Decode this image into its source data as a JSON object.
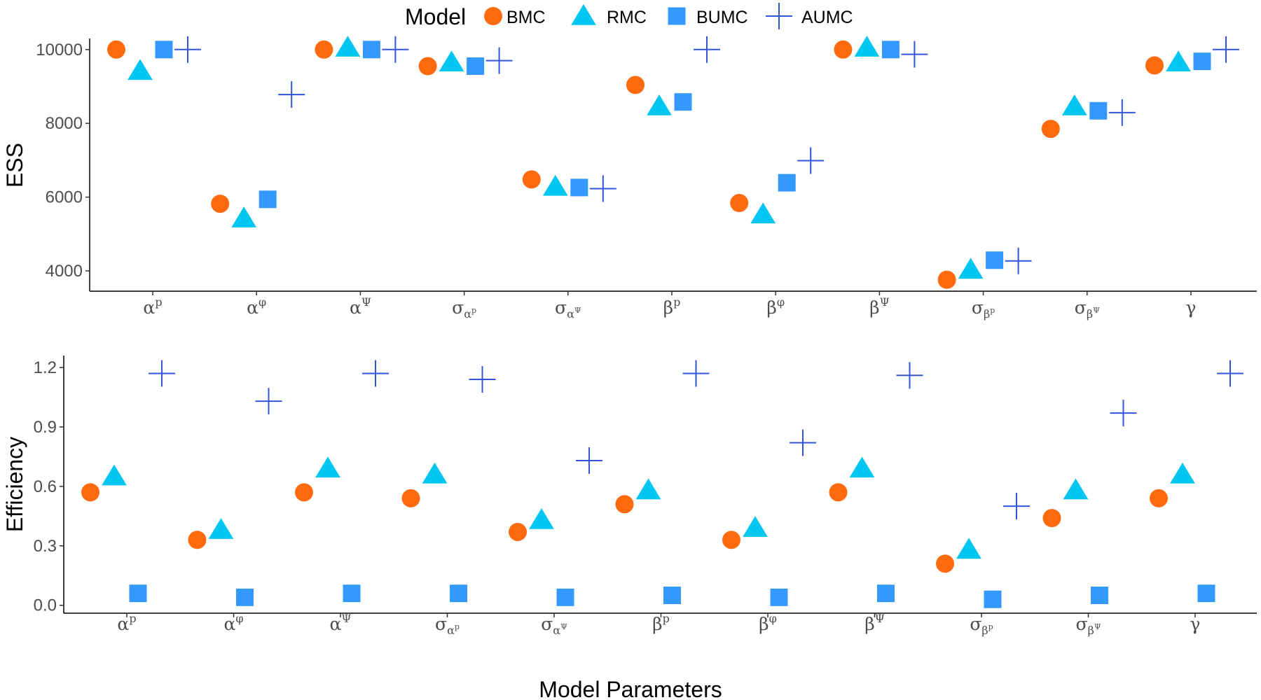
{
  "legend": {
    "title": "Model",
    "items": [
      {
        "name": "BMC",
        "shape": "circle",
        "color": "#FF6A0F"
      },
      {
        "name": "RMC",
        "shape": "triangle",
        "color": "#00C6F2"
      },
      {
        "name": "BUMC",
        "shape": "square",
        "color": "#3399FF"
      },
      {
        "name": "AUMC",
        "shape": "plus",
        "color": "#3355DD"
      }
    ]
  },
  "xlabel": "Model Parameters",
  "chart_data": [
    {
      "type": "scatter",
      "title": "",
      "ylabel": "ESS",
      "ylim": [
        3450,
        10300
      ],
      "yticks": [
        4000,
        6000,
        8000,
        10000
      ],
      "ytick_labels": [
        "4000",
        "6000",
        "8000",
        "10000"
      ],
      "grid": false,
      "categories": [
        {
          "base": "α",
          "sup": "p",
          "sub": "",
          "subsup": ""
        },
        {
          "base": "α",
          "sup": "φ",
          "sub": "",
          "subsup": ""
        },
        {
          "base": "α",
          "sup": "Ψ",
          "sub": "",
          "subsup": ""
        },
        {
          "base": "σ",
          "sup": "",
          "sub": "α",
          "subsup": "p"
        },
        {
          "base": "σ",
          "sup": "",
          "sub": "α",
          "subsup": "Ψ"
        },
        {
          "base": "β",
          "sup": "p",
          "sub": "",
          "subsup": ""
        },
        {
          "base": "β",
          "sup": "φ",
          "sub": "",
          "subsup": ""
        },
        {
          "base": "β",
          "sup": "Ψ",
          "sub": "",
          "subsup": ""
        },
        {
          "base": "σ",
          "sup": "",
          "sub": "β",
          "subsup": "p"
        },
        {
          "base": "σ",
          "sup": "",
          "sub": "β",
          "subsup": "Ψ"
        },
        {
          "base": "γ",
          "sup": "",
          "sub": "",
          "subsup": ""
        }
      ],
      "series": [
        {
          "name": "BMC",
          "values": [
            10000,
            5820,
            10000,
            9550,
            6480,
            9040,
            5840,
            10000,
            3760,
            7850,
            9570
          ]
        },
        {
          "name": "RMC",
          "values": [
            9420,
            5420,
            10050,
            9650,
            6280,
            8460,
            5530,
            10050,
            4030,
            8460,
            9650
          ]
        },
        {
          "name": "BUMC",
          "values": [
            10000,
            5940,
            10000,
            9550,
            6260,
            8580,
            6390,
            10000,
            4290,
            8340,
            9680
          ]
        },
        {
          "name": "AUMC",
          "values": [
            10000,
            8780,
            10000,
            9700,
            6230,
            10000,
            6990,
            9870,
            4270,
            8290,
            10000
          ]
        }
      ]
    },
    {
      "type": "scatter",
      "title": "",
      "ylabel": "Efficiency",
      "ylim": [
        -0.04,
        1.26
      ],
      "yticks": [
        0.0,
        0.3,
        0.6,
        0.9,
        1.2
      ],
      "ytick_labels": [
        "0.0",
        "0.3",
        "0.6",
        "0.9",
        "1.2"
      ],
      "grid": false,
      "categories": [
        {
          "base": "α",
          "sup": "p",
          "sub": "",
          "subsup": ""
        },
        {
          "base": "α",
          "sup": "φ",
          "sub": "",
          "subsup": ""
        },
        {
          "base": "α",
          "sup": "Ψ",
          "sub": "",
          "subsup": ""
        },
        {
          "base": "σ",
          "sup": "",
          "sub": "α",
          "subsup": "p"
        },
        {
          "base": "σ",
          "sup": "",
          "sub": "α",
          "subsup": "Ψ"
        },
        {
          "base": "β",
          "sup": "p",
          "sub": "",
          "subsup": ""
        },
        {
          "base": "β",
          "sup": "φ",
          "sub": "",
          "subsup": ""
        },
        {
          "base": "β",
          "sup": "Ψ",
          "sub": "",
          "subsup": ""
        },
        {
          "base": "σ",
          "sup": "",
          "sub": "β",
          "subsup": "p"
        },
        {
          "base": "σ",
          "sup": "",
          "sub": "β",
          "subsup": "Ψ"
        },
        {
          "base": "γ",
          "sup": "",
          "sub": "",
          "subsup": ""
        }
      ],
      "series": [
        {
          "name": "BMC",
          "values": [
            0.57,
            0.33,
            0.57,
            0.54,
            0.37,
            0.51,
            0.33,
            0.57,
            0.21,
            0.44,
            0.54
          ]
        },
        {
          "name": "RMC",
          "values": [
            0.65,
            0.38,
            0.69,
            0.66,
            0.43,
            0.58,
            0.39,
            0.69,
            0.28,
            0.58,
            0.66
          ]
        },
        {
          "name": "BUMC",
          "values": [
            0.06,
            0.04,
            0.06,
            0.06,
            0.04,
            0.05,
            0.04,
            0.06,
            0.03,
            0.05,
            0.06
          ]
        },
        {
          "name": "AUMC",
          "values": [
            1.17,
            1.03,
            1.17,
            1.14,
            0.73,
            1.17,
            0.82,
            1.16,
            0.5,
            0.97,
            1.17
          ]
        }
      ]
    }
  ]
}
